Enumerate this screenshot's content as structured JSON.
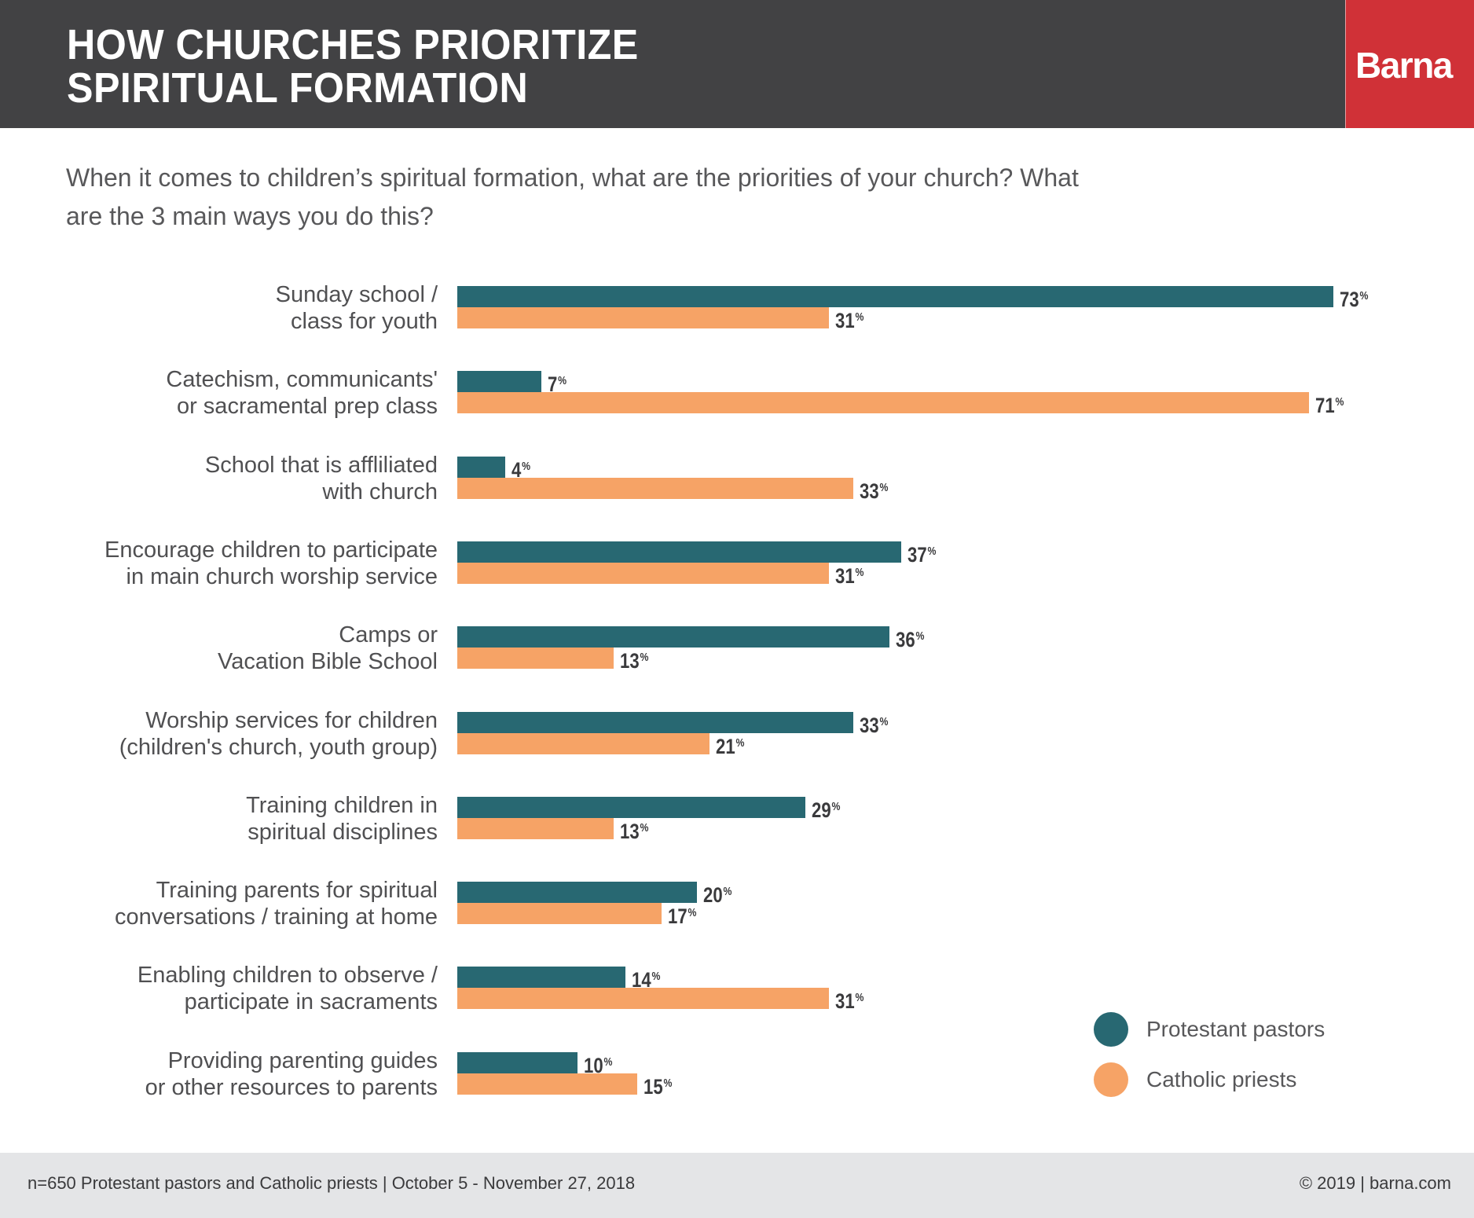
{
  "header": {
    "title_line1": "HOW CHURCHES PRIORITIZE",
    "title_line2": "SPIRITUAL FORMATION",
    "logo": "Barna",
    "bg_color": "#424244",
    "brand_color": "#d03137"
  },
  "subtitle": "When it comes to children’s spiritual formation, what are the priorities of your church? What are the 3 main ways you do this?",
  "chart_data": {
    "type": "bar",
    "orientation": "horizontal",
    "title": "How Churches Prioritize Spiritual Formation",
    "subtitle": "When it comes to children’s spiritual formation, what are the priorities of your church? What are the 3 main ways you do this?",
    "xlabel": "",
    "ylabel": "",
    "unit": "%",
    "xlim": [
      0,
      100
    ],
    "grid": false,
    "legend_position": "bottom-right",
    "categories": [
      "Sunday school / class for youth",
      "Catechism, communicants' or sacramental prep class",
      "School that is affliliated with church",
      "Encourage children to participate in main church worship service",
      "Camps or Vacation Bible School",
      "Worship services for children (children's church, youth group)",
      "Training children in spiritual disciplines",
      "Training parents for spiritual conversations / training at home",
      "Enabling children to observe / participate in sacraments",
      "Providing parenting guides or other resources to parents"
    ],
    "category_lines": [
      [
        "Sunday school /",
        "class for youth"
      ],
      [
        "Catechism, communicants'",
        "or sacramental prep class"
      ],
      [
        "School that is affliliated",
        "with church"
      ],
      [
        "Encourage children to participate",
        "in main church worship service"
      ],
      [
        "Camps or",
        "Vacation Bible School"
      ],
      [
        "Worship services for children",
        "(children's church, youth group)"
      ],
      [
        "Training children in",
        "spiritual disciplines"
      ],
      [
        "Training parents for spiritual",
        "conversations / training at home"
      ],
      [
        "Enabling children to observe /",
        "participate in sacraments"
      ],
      [
        "Providing parenting guides",
        "or other resources to parents"
      ]
    ],
    "series": [
      {
        "name": "Protestant pastors",
        "color": "#286872",
        "values": [
          73,
          7,
          4,
          37,
          36,
          33,
          29,
          20,
          14,
          10
        ]
      },
      {
        "name": "Catholic priests",
        "color": "#f6a366",
        "values": [
          31,
          71,
          33,
          31,
          13,
          21,
          13,
          17,
          31,
          15
        ]
      }
    ]
  },
  "legend": [
    {
      "label": "Protestant pastors",
      "color": "#286872"
    },
    {
      "label": "Catholic priests",
      "color": "#f6a366"
    }
  ],
  "footer": {
    "left": "n=650 Protestant pastors and Catholic priests | October 5 - November 27, 2018",
    "right": "© 2019 | barna.com"
  }
}
